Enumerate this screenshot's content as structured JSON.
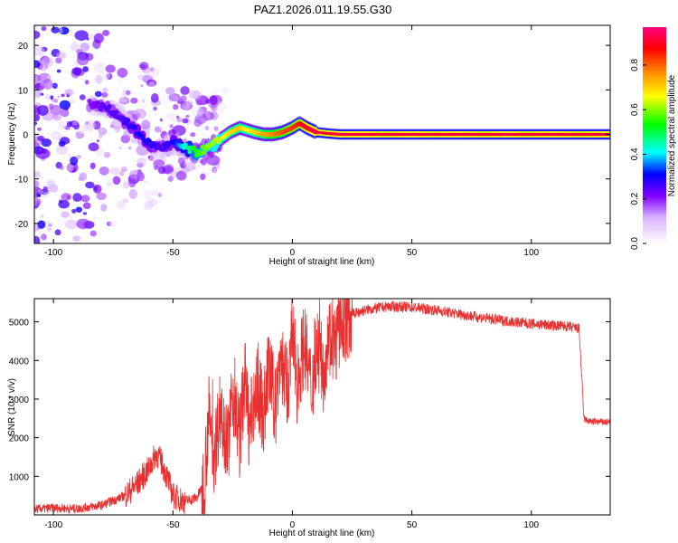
{
  "title": "PAZ1.2026.011.19.55.G30",
  "chart_data": [
    {
      "type": "heatmap",
      "xlabel": "Height of straight line (km)",
      "ylabel": "Frequency (Hz)",
      "xlim": [
        -108,
        133
      ],
      "ylim": [
        -24.5,
        24.5
      ],
      "x_ticks": [
        -100,
        -50,
        0,
        50,
        100
      ],
      "y_ticks": [
        -20,
        -10,
        0,
        10,
        20
      ],
      "colorbar": {
        "label": "Normalized spectral amplitude",
        "range": [
          0.0,
          0.97
        ],
        "ticks": [
          0.0,
          0.2,
          0.4,
          0.6,
          0.8
        ],
        "colors": [
          "#ffffff",
          "#d9b3ff",
          "#8000ff",
          "#0000ff",
          "#00ffff",
          "#00ff00",
          "#ffff00",
          "#ff8000",
          "#ff0000",
          "#ff0080"
        ]
      },
      "ridge": {
        "x": [
          -85,
          -78,
          -72,
          -66,
          -60,
          -55,
          -50,
          -45,
          -40,
          -35,
          -30,
          -26,
          -22,
          -19,
          -16,
          -12,
          -8,
          -4,
          0,
          3,
          6,
          10,
          15,
          20,
          30,
          40,
          50,
          60,
          70,
          80,
          90,
          100,
          110,
          120,
          133
        ],
        "freq": [
          7,
          6,
          4,
          1,
          -2,
          -3,
          -2,
          -3,
          -4,
          -3,
          -1,
          0.5,
          1.5,
          1.0,
          0.5,
          0.0,
          0.0,
          0.5,
          1.5,
          2.5,
          1.5,
          0.5,
          0.2,
          0.0,
          0.0,
          0.0,
          0.0,
          0.0,
          0.0,
          0.0,
          0.0,
          0.0,
          0.0,
          0.0,
          0.0
        ],
        "amp": [
          0.2,
          0.25,
          0.25,
          0.3,
          0.3,
          0.25,
          0.3,
          0.45,
          0.55,
          0.6,
          0.62,
          0.68,
          0.7,
          0.65,
          0.68,
          0.72,
          0.75,
          0.8,
          0.82,
          0.85,
          0.9,
          0.92,
          0.9,
          0.92,
          0.92,
          0.9,
          0.92,
          0.9,
          0.92,
          0.9,
          0.92,
          0.9,
          0.92,
          0.9,
          0.92
        ]
      }
    },
    {
      "type": "line",
      "xlabel": "Height of straight line (km)",
      "ylabel": "SNR (10 * v/v)",
      "xlim": [
        -108,
        133
      ],
      "ylim": [
        0,
        5600
      ],
      "x_ticks": [
        -100,
        -50,
        0,
        50,
        100
      ],
      "y_ticks": [
        1000,
        2000,
        3000,
        4000,
        5000
      ],
      "color": "#e83030",
      "series": [
        {
          "name": "SNR",
          "x": [
            -108,
            -100,
            -90,
            -80,
            -70,
            -65,
            -60,
            -57,
            -55,
            -52,
            -50,
            -45,
            -40,
            -37,
            -35,
            -33,
            -30,
            -27,
            -25,
            -22,
            -20,
            -18,
            -15,
            -12,
            -10,
            -7,
            -5,
            -2,
            0,
            2,
            5,
            8,
            10,
            13,
            15,
            18,
            20,
            23,
            25,
            28,
            30,
            35,
            40,
            50,
            60,
            70,
            80,
            90,
            100,
            110,
            115,
            120,
            122,
            123,
            125,
            133
          ],
          "values": [
            150,
            180,
            160,
            250,
            500,
            800,
            1200,
            1600,
            1400,
            900,
            500,
            350,
            450,
            800,
            2600,
            1500,
            2800,
            1800,
            3200,
            2000,
            3600,
            2200,
            3300,
            2600,
            3800,
            2800,
            4200,
            3100,
            4700,
            3400,
            4500,
            3200,
            4400,
            3700,
            4700,
            4400,
            4900,
            5100,
            5200,
            5250,
            5300,
            5350,
            5400,
            5380,
            5300,
            5200,
            5100,
            5020,
            4950,
            4900,
            4880,
            4820,
            2500,
            2450,
            2420,
            2400
          ]
        }
      ]
    }
  ]
}
